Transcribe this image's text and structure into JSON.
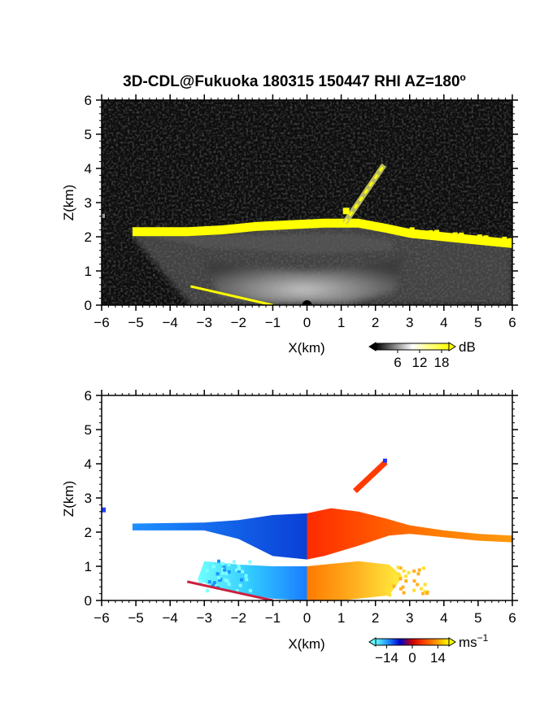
{
  "figure": {
    "title": "3D-CDL@Fukuoka 180315 150447 RHI AZ=180",
    "title_sup": "o"
  },
  "chart_data": [
    {
      "type": "heatmap",
      "panel": "top",
      "xlabel": "X(km)",
      "ylabel": "Z(km)",
      "xlim": [
        -6,
        6
      ],
      "ylim": [
        0,
        6
      ],
      "x_ticks": [
        -6,
        -5,
        -4,
        -3,
        -2,
        -1,
        0,
        1,
        2,
        3,
        4,
        5,
        6
      ],
      "y_ticks": [
        0,
        1,
        2,
        3,
        4,
        5,
        6
      ],
      "colorbar": {
        "unit": "dB",
        "ticks": [
          6,
          12,
          18
        ],
        "range": [
          0,
          20
        ],
        "colors": [
          "#000000",
          "#ffffff",
          "#ffff00"
        ]
      },
      "background_color": "#0d0d0d",
      "layer_top_z": [
        [
          -5.1,
          2.2
        ],
        [
          -4.5,
          2.2
        ],
        [
          -3.5,
          2.2
        ],
        [
          -2.5,
          2.25
        ],
        [
          -1.5,
          2.35
        ],
        [
          -0.5,
          2.4
        ],
        [
          0.5,
          2.45
        ],
        [
          1.5,
          2.45
        ],
        [
          2.3,
          2.3
        ],
        [
          3,
          2.15
        ],
        [
          4,
          2.05
        ],
        [
          5,
          1.95
        ],
        [
          6,
          1.85
        ]
      ],
      "layer_bottom_z": [
        [
          -5.1,
          2.1
        ],
        [
          -4,
          1.9
        ],
        [
          -3,
          1.5
        ],
        [
          -2,
          1.1
        ],
        [
          -1,
          0.8
        ],
        [
          0,
          0.7
        ],
        [
          1,
          0.9
        ],
        [
          2,
          1.3
        ],
        [
          2.5,
          1.7
        ],
        [
          3,
          2.0
        ]
      ],
      "plume": [
        [
          1.1,
          2.4
        ],
        [
          2.25,
          4.1
        ]
      ],
      "ground_echo_x": [
        -3.4,
        -1.0
      ],
      "radar_site": [
        0,
        0
      ],
      "stray_point": [
        -6,
        2.6
      ]
    },
    {
      "type": "heatmap",
      "panel": "bottom",
      "xlabel": "X(km)",
      "ylabel": "Z(km)",
      "xlim": [
        -6,
        6
      ],
      "ylim": [
        0,
        6
      ],
      "x_ticks": [
        -6,
        -5,
        -4,
        -3,
        -2,
        -1,
        0,
        1,
        2,
        3,
        4,
        5,
        6
      ],
      "y_ticks": [
        0,
        1,
        2,
        3,
        4,
        5,
        6
      ],
      "colorbar": {
        "unit": "ms",
        "unit_sup": "-1",
        "ticks": [
          -14,
          0,
          14
        ],
        "range": [
          -20,
          20
        ],
        "colors": [
          "#66ffff",
          "#1e90ff",
          "#0000cc",
          "#cc0000",
          "#ff4500",
          "#ff9900",
          "#ffff00"
        ]
      },
      "background_color": "#ffffff",
      "note": "negative = toward radar (blue), positive = away (red/yellow)",
      "stray_point": [
        -6,
        2.65
      ]
    }
  ]
}
